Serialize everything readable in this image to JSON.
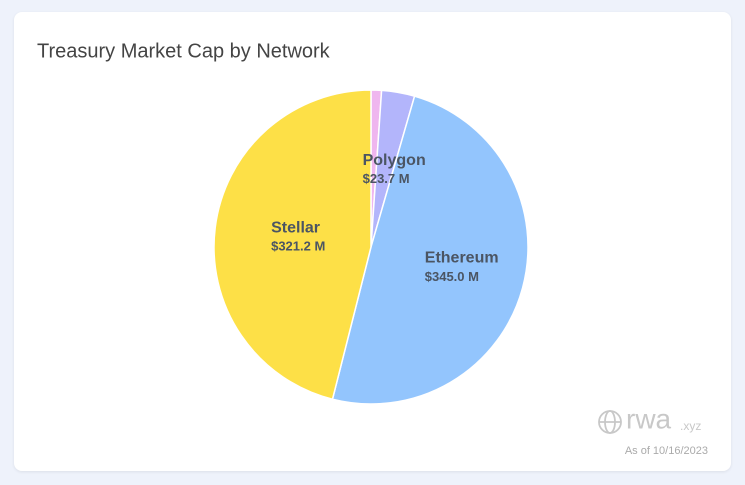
{
  "chart_data": {
    "type": "pie",
    "title": "Treasury Market Cap by Network",
    "categories": [
      null,
      "Polygon",
      "Ethereum",
      "Stellar"
    ],
    "values": [
      7.5,
      23.7,
      345.0,
      321.2
    ],
    "value_labels": [
      null,
      "$23.7 M",
      "$345.0 M",
      "$321.2 M"
    ],
    "colors": [
      "#efb6ef",
      "#b3b5fb",
      "#93c5fd",
      "#fde047"
    ],
    "brand": "rwa",
    "brand_suffix": ".xyz",
    "note": "As of 10/16/2023"
  }
}
